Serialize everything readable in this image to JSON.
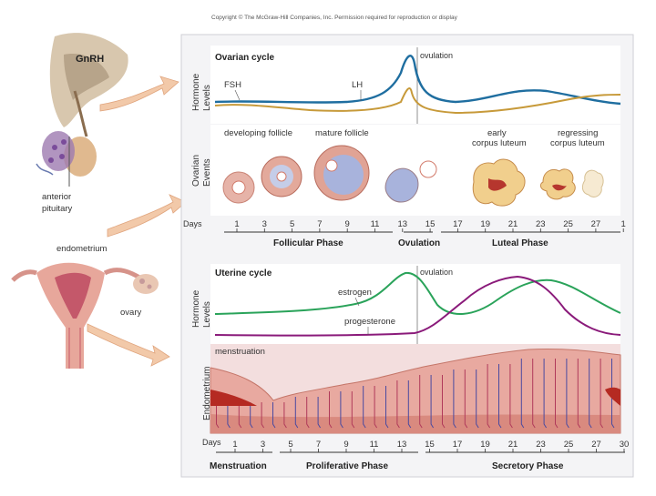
{
  "copyright": "Copyright © The McGraw-Hill Companies, Inc. Permission required for reproduction or display",
  "anatomy": {
    "gnrh": "GnRH",
    "anterior_pituitary": "anterior pituitary",
    "endometrium": "endometrium",
    "ovary": "ovary"
  },
  "ovarian": {
    "title": "Ovarian cycle",
    "ylabel": "Hormone Levels",
    "fsh": "FSH",
    "lh": "LH",
    "ovulation": "ovulation",
    "events_label": "Ovarian Events",
    "developing_follicle": "developing follicle",
    "mature_follicle": "mature follicle",
    "early_corpus_luteum": "early corpus luteum",
    "regressing_corpus_luteum": "regressing corpus luteum",
    "days_label": "Days",
    "days": [
      "1",
      "3",
      "5",
      "7",
      "9",
      "11",
      "13",
      "15",
      "17",
      "19",
      "21",
      "23",
      "25",
      "27",
      "1"
    ],
    "phases": [
      "Follicular Phase",
      "Ovulation",
      "Luteal Phase"
    ]
  },
  "uterine": {
    "title": "Uterine cycle",
    "ylabel": "Hormone Levels",
    "ovulation": "ovulation",
    "estrogen": "estrogen",
    "progesterone": "progesterone",
    "menstruation": "menstruation",
    "endometrium_label": "Endometrium",
    "days_label": "Days",
    "days": [
      "1",
      "3",
      "5",
      "7",
      "9",
      "11",
      "13",
      "15",
      "17",
      "19",
      "21",
      "23",
      "25",
      "27",
      "30"
    ],
    "phases": [
      "Menstruation",
      "Proliferative Phase",
      "Secretory Phase"
    ]
  },
  "colors": {
    "fsh_lh": "#1f6ea0",
    "lh_gold": "#c79a3a",
    "estrogen": "#2aa35a",
    "progesterone": "#8a1a7a",
    "panel_bg": "#f4f4f6",
    "endometrium": "#e8a9a0",
    "vessels": "#4a4aa0"
  }
}
